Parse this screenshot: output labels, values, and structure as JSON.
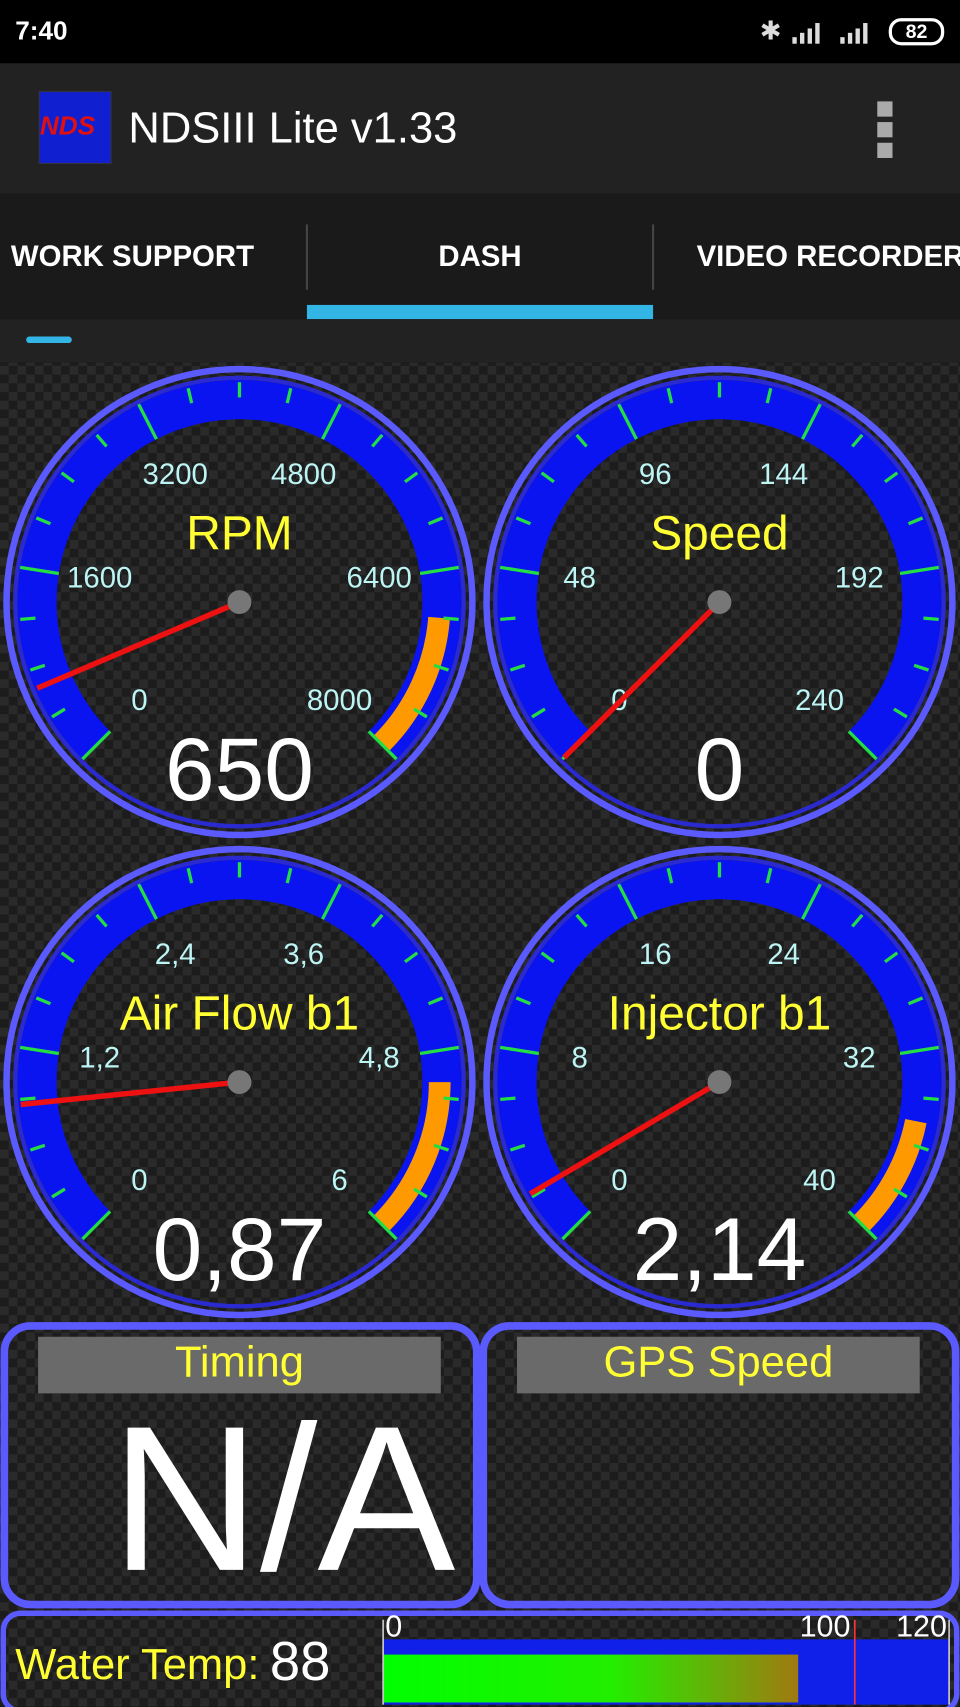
{
  "status_bar": {
    "time": "7:40",
    "battery": "82"
  },
  "app_bar": {
    "icon_text": "NDS",
    "title": "NDSIII Lite v1.33"
  },
  "tabs": {
    "items": [
      "WORK SUPPORT",
      "DASH",
      "VIDEO RECORDER"
    ],
    "active": 1
  },
  "gauges": [
    {
      "title": "RPM",
      "lim": [
        0,
        8000
      ],
      "ticks": [
        0,
        1600,
        3200,
        4800,
        6400,
        8000
      ],
      "value": 650,
      "redline": 6800
    },
    {
      "title": "Speed",
      "lim": [
        0,
        240
      ],
      "ticks": [
        0,
        48,
        96,
        144,
        192,
        240
      ],
      "value": 0
    },
    {
      "title": "Air Flow b1",
      "lim": [
        0,
        6
      ],
      "ticks": [
        0,
        {
          "value": 1.2,
          "label": "1,2"
        },
        {
          "value": 2.4,
          "label": "2,4"
        },
        {
          "value": 3.6,
          "label": "3,6"
        },
        {
          "value": 4.8,
          "label": "4,8"
        },
        6
      ],
      "value": 0.87,
      "value_label": "0,87",
      "redline": 5
    },
    {
      "title": "Injector b1",
      "lim": [
        0,
        40
      ],
      "ticks": [
        0,
        8,
        16,
        24,
        32,
        40
      ],
      "value": 2.14,
      "value_label": "2,14",
      "redline": 35
    }
  ],
  "panels": [
    {
      "title": "Timing",
      "value": "N/A"
    },
    {
      "title": "GPS Speed"
    }
  ],
  "water_temp": {
    "label": "Water Temp:",
    "value": 88,
    "lim": [
      0,
      120
    ],
    "ticks": [
      0,
      100,
      120
    ]
  }
}
